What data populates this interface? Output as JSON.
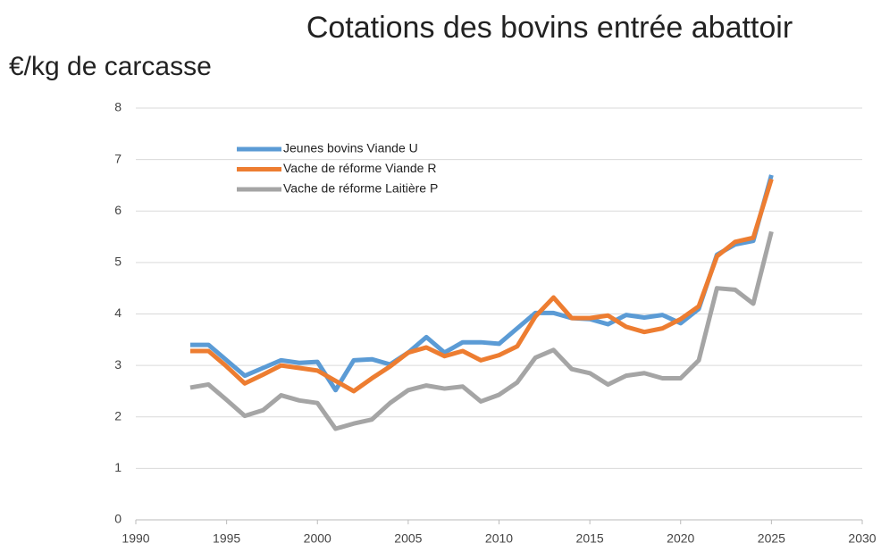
{
  "chart_data": {
    "type": "line",
    "title": "Cotations des bovins entrée abattoir",
    "y_label": "€/kg de carcasse",
    "x": [
      1993,
      1994,
      1995,
      1996,
      1997,
      1998,
      1999,
      2000,
      2001,
      2002,
      2003,
      2004,
      2005,
      2006,
      2007,
      2008,
      2009,
      2010,
      2011,
      2012,
      2013,
      2014,
      2015,
      2016,
      2017,
      2018,
      2019,
      2020,
      2021,
      2022,
      2023,
      2024,
      2025
    ],
    "series": [
      {
        "name": "Jeunes bovins Viande U",
        "color": "#5b9bd5",
        "values": [
          3.4,
          3.4,
          3.1,
          2.8,
          2.95,
          3.1,
          3.05,
          3.07,
          2.52,
          3.1,
          3.12,
          3.02,
          3.25,
          3.55,
          3.25,
          3.45,
          3.45,
          3.42,
          3.72,
          4.02,
          4.02,
          3.92,
          3.9,
          3.8,
          3.98,
          3.93,
          3.98,
          3.82,
          4.1,
          5.15,
          5.35,
          5.42,
          6.7
        ]
      },
      {
        "name": "Vache de réforme Viande R",
        "color": "#ed7d31",
        "values": [
          3.28,
          3.28,
          2.98,
          2.65,
          2.82,
          3.0,
          2.95,
          2.9,
          2.7,
          2.5,
          2.75,
          2.98,
          3.25,
          3.35,
          3.18,
          3.28,
          3.1,
          3.2,
          3.37,
          3.95,
          4.32,
          3.92,
          3.92,
          3.97,
          3.75,
          3.65,
          3.72,
          3.9,
          4.15,
          5.12,
          5.4,
          5.48,
          6.62
        ]
      },
      {
        "name": "Vache de réforme Laitière P",
        "color": "#a5a5a5",
        "values": [
          2.57,
          2.63,
          2.33,
          2.02,
          2.13,
          2.42,
          2.32,
          2.27,
          1.77,
          1.87,
          1.95,
          2.27,
          2.52,
          2.61,
          2.55,
          2.59,
          2.3,
          2.43,
          2.67,
          3.15,
          3.3,
          2.93,
          2.85,
          2.63,
          2.8,
          2.85,
          2.75,
          2.75,
          3.1,
          4.5,
          4.47,
          4.2,
          5.6
        ]
      }
    ],
    "xlim": [
      1990,
      2030
    ],
    "xticks": [
      1990,
      1995,
      2000,
      2005,
      2010,
      2015,
      2020,
      2025,
      2030
    ],
    "ylim": [
      0,
      8
    ],
    "yticks": [
      0,
      1,
      2,
      3,
      4,
      5,
      6,
      7,
      8
    ],
    "grid": true,
    "legend": "upper-left"
  }
}
